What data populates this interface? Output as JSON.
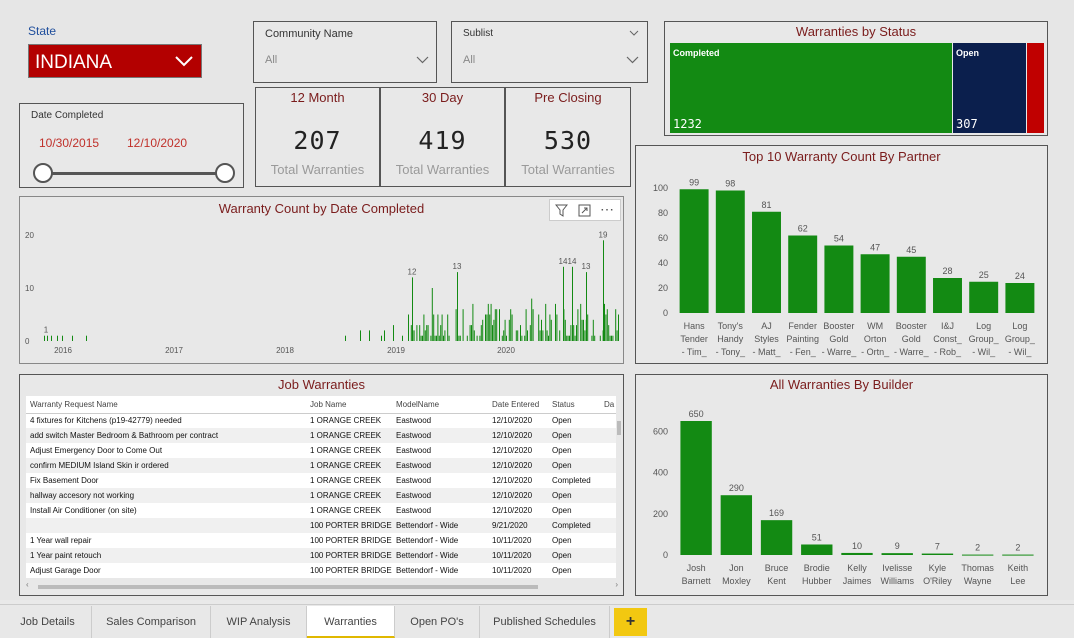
{
  "state_slicer": {
    "label": "State",
    "value": "INDIANA"
  },
  "community_slicer": {
    "label": "Community Name",
    "value": "All"
  },
  "sublist_slicer": {
    "label": "Sublist",
    "value": "All"
  },
  "date_slicer": {
    "label": "Date Completed",
    "start": "10/30/2015",
    "end": "12/10/2020"
  },
  "cards": [
    {
      "title": "12 Month",
      "value": "207",
      "sub": "Total Warranties"
    },
    {
      "title": "30 Day",
      "value": "419",
      "sub": "Total Warranties"
    },
    {
      "title": "Pre Closing",
      "value": "530",
      "sub": "Total Warranties"
    }
  ],
  "status_treemap": {
    "title": "Warranties by Status",
    "items": [
      {
        "label": "Completed",
        "value": "1232",
        "color": "#138a13"
      },
      {
        "label": "Open",
        "value": "307",
        "color": "#0b1f4d"
      },
      {
        "label": "",
        "value": "",
        "color": "#c00000"
      }
    ]
  },
  "date_chart": {
    "title": "Warranty Count by Date Completed",
    "y_ticks": [
      "20",
      "10",
      "0"
    ],
    "x_ticks": [
      "2016",
      "2017",
      "2018",
      "2019",
      "2020"
    ],
    "annotations": [
      "1",
      "12",
      "13",
      "14",
      "14",
      "13",
      "19"
    ],
    "color": "#138a13"
  },
  "chart_data": [
    {
      "type": "bar",
      "title": "Top 10 Warranty Count By Partner",
      "categories": [
        "Hans Tender - Tim_",
        "Tony's Handy - Tony_",
        "AJ Styles - Matt_",
        "Fender Painting - Fen_",
        "Booster Gold - Warre_",
        "WM Orton - Ortn_",
        "Booster Gold - Warre_",
        "I&J Const_ - Rob_",
        "Log Group_ - Wil_",
        "Log Group_ - Wil_"
      ],
      "category_lines": [
        [
          "Hans",
          "Tender",
          "- Tim_"
        ],
        [
          "Tony's",
          "Handy",
          "- Tony_"
        ],
        [
          "AJ",
          "Styles",
          "- Matt_"
        ],
        [
          "Fender",
          "Painting",
          "- Fen_"
        ],
        [
          "Booster",
          "Gold",
          "- Warre_"
        ],
        [
          "WM",
          "Orton",
          "- Ortn_"
        ],
        [
          "Booster",
          "Gold",
          "- Warre_"
        ],
        [
          "I&J",
          "Const_",
          "- Rob_"
        ],
        [
          "Log",
          "Group_",
          "- Wil_"
        ],
        [
          "Log",
          "Group_",
          "- Wil_"
        ]
      ],
      "values": [
        99,
        98,
        81,
        62,
        54,
        47,
        45,
        28,
        25,
        24
      ],
      "y_ticks": [
        0,
        20,
        40,
        60,
        80,
        100
      ],
      "ylim": [
        0,
        100
      ],
      "color": "#138a13"
    },
    {
      "type": "bar",
      "title": "All Warranties By Builder",
      "categories": [
        "Josh Barnett",
        "Jon Moxley",
        "Bruce Kent",
        "Brodie Hubber",
        "Kelly Jaimes",
        "Ivelisse Williams",
        "Kyle O'Riley",
        "Thomas Wayne",
        "Keith Lee"
      ],
      "category_lines": [
        [
          "Josh",
          "Barnett"
        ],
        [
          "Jon",
          "Moxley"
        ],
        [
          "Bruce",
          "Kent"
        ],
        [
          "Brodie",
          "Hubber"
        ],
        [
          "Kelly",
          "Jaimes"
        ],
        [
          "Ivelisse",
          "Williams"
        ],
        [
          "Kyle",
          "O'Riley"
        ],
        [
          "Thomas",
          "Wayne"
        ],
        [
          "Keith",
          "Lee"
        ]
      ],
      "values": [
        650,
        290,
        169,
        51,
        10,
        9,
        7,
        2,
        2
      ],
      "y_ticks": [
        0,
        200,
        400,
        600
      ],
      "ylim": [
        0,
        650
      ],
      "color": "#138a13"
    }
  ],
  "job_warranties": {
    "title": "Job Warranties",
    "columns": [
      "Warranty Request Name",
      "Job Name",
      "ModelName",
      "Date Entered",
      "Status",
      "Da"
    ],
    "rows": [
      [
        "4 fixtures for Kitchens (p19-42779) needed",
        "1 ORANGE CREEK",
        "Eastwood",
        "12/10/2020",
        "Open",
        ""
      ],
      [
        "add switch Master Bedroom & Bathroom per contract",
        "1 ORANGE CREEK",
        "Eastwood",
        "12/10/2020",
        "Open",
        ""
      ],
      [
        "Adjust Emergency Door to Come Out",
        "1 ORANGE CREEK",
        "Eastwood",
        "12/10/2020",
        "Open",
        ""
      ],
      [
        "confirm MEDIUM Island Skin ir ordered",
        "1 ORANGE CREEK",
        "Eastwood",
        "12/10/2020",
        "Open",
        ""
      ],
      [
        "Fix Basement Door",
        "1 ORANGE CREEK",
        "Eastwood",
        "12/10/2020",
        "Completed",
        ""
      ],
      [
        "hallway accesory  not working",
        "1 ORANGE CREEK",
        "Eastwood",
        "12/10/2020",
        "Open",
        ""
      ],
      [
        "Install Air Conditioner (on site)",
        "1 ORANGE CREEK",
        "Eastwood",
        "12/10/2020",
        "Open",
        ""
      ],
      [
        "",
        "100 PORTER BRIDGE",
        "Bettendorf - Wide",
        "9/21/2020",
        "Completed",
        ""
      ],
      [
        "1 Year wall repair",
        "100 PORTER BRIDGE",
        "Bettendorf - Wide",
        "10/11/2020",
        "Open",
        ""
      ],
      [
        "1 Year paint retouch",
        "100 PORTER BRIDGE",
        "Bettendorf - Wide",
        "10/11/2020",
        "Open",
        ""
      ],
      [
        "Adjust Garage Door",
        "100 PORTER BRIDGE",
        "Bettendorf - Wide",
        "10/11/2020",
        "Open",
        ""
      ]
    ]
  },
  "tabs": [
    "Job Details",
    "Sales Comparison",
    "WIP Analysis",
    "Warranties",
    "Open PO's",
    "Published Schedules"
  ],
  "active_tab": "Warranties",
  "add_tab_label": "+"
}
